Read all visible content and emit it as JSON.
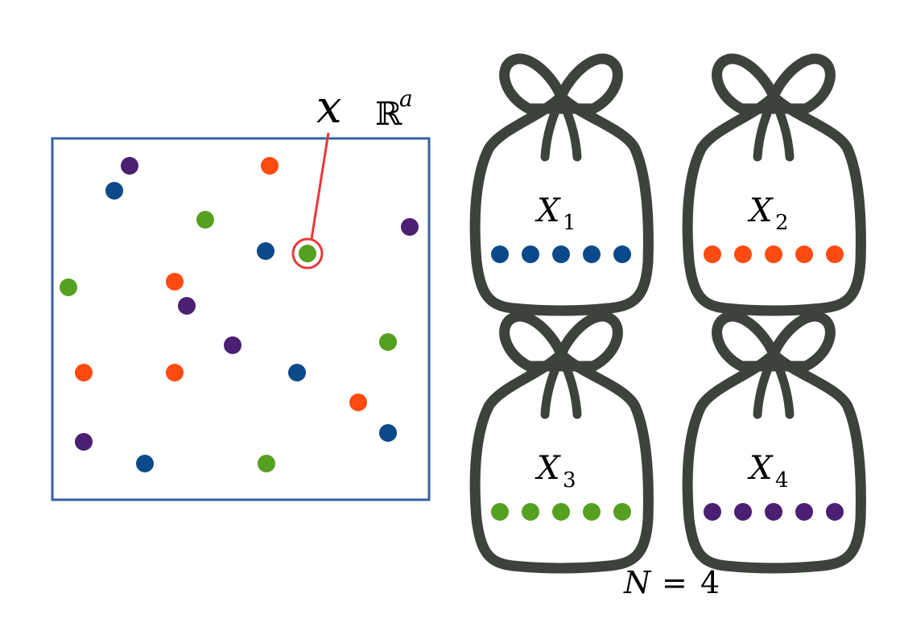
{
  "colors": {
    "blue": "#0b4a8a",
    "orange": "#ff4a12",
    "green": "#56a021",
    "purple": "#4b1f73",
    "box_stroke": "#3461a6",
    "highlight": "#e8383a",
    "bag": "#3d423d"
  },
  "space": {
    "point_label": "x",
    "space_symbol": "ℝ",
    "space_exponent": "a",
    "points": [
      {
        "color": "purple"
      },
      {
        "color": "blue"
      },
      {
        "color": "orange"
      },
      {
        "color": "green"
      },
      {
        "color": "purple"
      },
      {
        "color": "blue"
      },
      {
        "color": "green",
        "highlighted": true
      },
      {
        "color": "green"
      },
      {
        "color": "orange"
      },
      {
        "color": "purple"
      },
      {
        "color": "purple"
      },
      {
        "color": "green"
      },
      {
        "color": "orange"
      },
      {
        "color": "orange"
      },
      {
        "color": "blue"
      },
      {
        "color": "orange"
      },
      {
        "color": "blue"
      },
      {
        "color": "purple"
      },
      {
        "color": "blue"
      },
      {
        "color": "green"
      }
    ]
  },
  "bags": [
    {
      "symbol": "X",
      "subscript": "1",
      "color": "blue",
      "count": 5
    },
    {
      "symbol": "X",
      "subscript": "2",
      "color": "orange",
      "count": 5
    },
    {
      "symbol": "X",
      "subscript": "3",
      "color": "green",
      "count": 5
    },
    {
      "symbol": "X",
      "subscript": "4",
      "color": "purple",
      "count": 5
    }
  ],
  "caption": {
    "variable": "N",
    "operator": "=",
    "value": "4"
  }
}
